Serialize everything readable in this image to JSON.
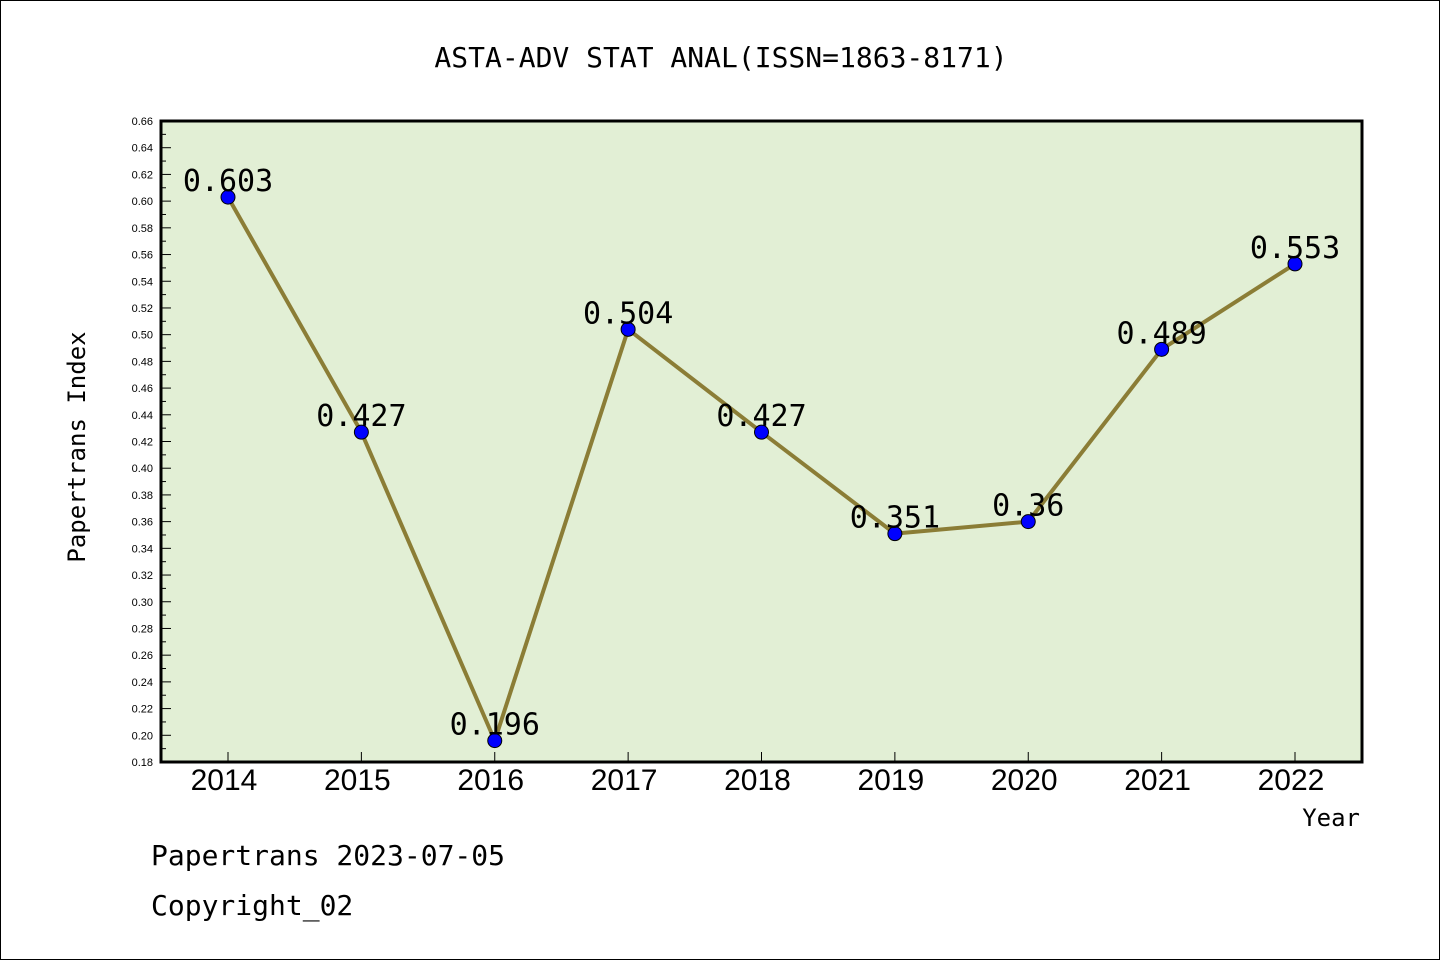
{
  "chart_data": {
    "type": "line",
    "title": "ASTA-ADV STAT ANAL(ISSN=1863-8171)",
    "xlabel": "Year",
    "ylabel": "Papertrans Index",
    "categories": [
      "2014",
      "2015",
      "2016",
      "2017",
      "2018",
      "2019",
      "2020",
      "2021",
      "2022"
    ],
    "values": [
      0.603,
      0.427,
      0.196,
      0.504,
      0.427,
      0.351,
      0.36,
      0.489,
      0.553
    ],
    "data_labels": [
      "0.603",
      "0.427",
      "0.196",
      "0.504",
      "0.427",
      "0.351",
      "0.36",
      "0.489",
      "0.553"
    ],
    "ylim": [
      0.18,
      0.66
    ],
    "ytick_step": 0.02,
    "grid": false,
    "legend": "none",
    "colors": {
      "plot_background": "#e2efd5",
      "line": "#8b7d36",
      "marker": "#0000ff",
      "axis": "#000000"
    }
  },
  "footer": {
    "line1": "Papertrans 2023-07-05",
    "line2": "Copyright_02"
  }
}
